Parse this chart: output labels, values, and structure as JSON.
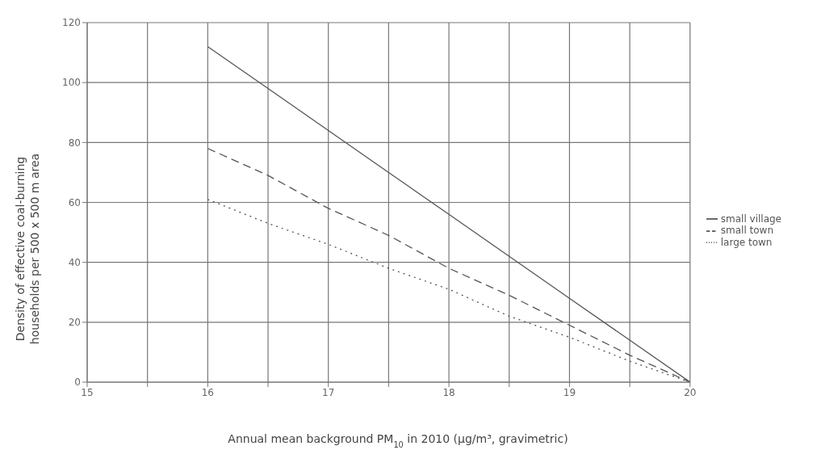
{
  "chart_data": {
    "type": "line",
    "xlabel": "Annual mean background PM$_{10}$ in 2010 (µg/m³, gravimetric)",
    "ylabel": "Density of effective coal-burning households per 500 x 500 m area",
    "x": [
      16,
      16.5,
      17,
      17.5,
      18,
      18.5,
      19,
      19.5,
      20
    ],
    "series": [
      {
        "name": "small village",
        "color": "#555555",
        "line_style": "solid",
        "values": [
          112,
          98,
          84,
          70,
          56,
          42,
          28,
          14,
          0
        ]
      },
      {
        "name": "small town",
        "color": "#555555",
        "line_style": "dashed",
        "values": [
          78,
          69,
          58,
          49,
          38,
          29,
          19,
          9,
          0
        ]
      },
      {
        "name": "large town",
        "color": "#555555",
        "line_style": "dotted",
        "values": [
          61,
          53,
          46,
          38,
          31,
          22,
          15,
          7,
          0
        ]
      }
    ],
    "xlim": [
      15,
      20
    ],
    "xticks": [
      15,
      {
        "value": 15.5,
        "label": null
      },
      16,
      {
        "value": 16.5,
        "label": null
      },
      17,
      {
        "value": 17.5,
        "label": null
      },
      18,
      {
        "value": 18.5,
        "label": null
      },
      19,
      {
        "value": 19.5,
        "label": null
      },
      20
    ],
    "ylim": [
      0,
      120
    ],
    "yticks": [
      0,
      20,
      40,
      60,
      80,
      100,
      120
    ],
    "grid": true,
    "legend": "right",
    "marker": "none"
  }
}
